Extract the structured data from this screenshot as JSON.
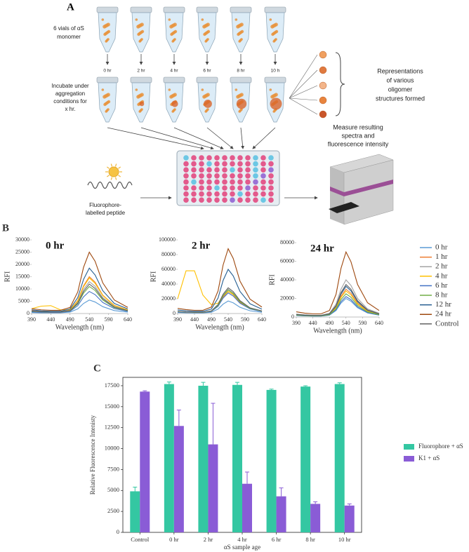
{
  "diagram": {
    "label": "A",
    "vials_text": [
      "6 vials of αS",
      "monomer"
    ],
    "times": [
      "0 hr",
      "2 hr",
      "4 hr",
      "6 hr",
      "8 hr",
      "10 h"
    ],
    "incubate_text": [
      "Incubate under",
      "aggregation",
      "conditions for",
      "x hr."
    ],
    "oligomer_text": [
      "Representations",
      "of various",
      "oligomer",
      "structures formed"
    ],
    "measure_text": [
      "Measure resulting",
      "spectra and",
      "fluorescence intensity"
    ],
    "peptide_text": [
      "Fluorophore-",
      "labelled peptide"
    ]
  },
  "chart_data": [
    {
      "type": "line",
      "panel_label": "B",
      "xlabel": "Wavelength (nm)",
      "ylabel": "RFI",
      "x": [
        390,
        415,
        440,
        465,
        490,
        510,
        525,
        540,
        555,
        575,
        605,
        640
      ],
      "xlim": [
        390,
        640
      ],
      "xticks": [
        390,
        440,
        490,
        540,
        590,
        640
      ],
      "series": [
        {
          "name": "0 hr",
          "color": "#5b9bd5"
        },
        {
          "name": "1 hr",
          "color": "#ed7d31"
        },
        {
          "name": "2 hr",
          "color": "#a5a5a5"
        },
        {
          "name": "4 hr",
          "color": "#ffc000"
        },
        {
          "name": "6 hr",
          "color": "#4472c4"
        },
        {
          "name": "8 hr",
          "color": "#70ad47"
        },
        {
          "name": "12 hr",
          "color": "#255e91"
        },
        {
          "name": "24 hr",
          "color": "#9e480e"
        },
        {
          "name": "Control",
          "color": "#636363"
        }
      ],
      "panels": [
        {
          "title": "0 hr",
          "ylim": [
            0,
            30000
          ],
          "yticks": [
            0,
            5000,
            10000,
            15000,
            20000,
            25000,
            30000
          ],
          "values": [
            [
              400,
              300,
              300,
              300,
              600,
              1900,
              4100,
              5500,
              4700,
              2800,
              1200,
              600
            ],
            [
              1200,
              900,
              750,
              750,
              1500,
              5300,
              11300,
              15000,
              12800,
              7500,
              3300,
              1500
            ],
            [
              1000,
              800,
              700,
              700,
              1300,
              4600,
              9800,
              13000,
              11100,
              6500,
              2900,
              1300
            ],
            [
              2000,
              3000,
              3200,
              1500,
              1500,
              5100,
              10900,
              14500,
              12300,
              7300,
              3200,
              1500
            ],
            [
              700,
              500,
              500,
              500,
              900,
              3200,
              6800,
              9000,
              7700,
              4500,
              2000,
              900
            ],
            [
              900,
              700,
              600,
              600,
              1100,
              3900,
              8300,
              11000,
              9400,
              5500,
              2400,
              1100
            ],
            [
              1500,
              1100,
              900,
              900,
              1900,
              6500,
              13900,
              18500,
              15700,
              9300,
              4100,
              1900
            ],
            [
              2000,
              1500,
              1300,
              1300,
              2500,
              8800,
              18800,
              25000,
              21300,
              12500,
              5500,
              2500
            ],
            [
              1000,
              700,
              600,
              600,
              1200,
              4200,
              9000,
              12000,
              10200,
              6000,
              2600,
              1200
            ]
          ]
        },
        {
          "title": "2 hr",
          "ylim": [
            0,
            100000
          ],
          "yticks": [
            0,
            20000,
            40000,
            60000,
            80000,
            100000
          ],
          "values": [
            [
              1400,
              1000,
              900,
              900,
              1700,
              6000,
              12800,
              17000,
              14500,
              8500,
              3700,
              1700
            ],
            [
              2400,
              1800,
              1500,
              1500,
              3000,
              10500,
              22500,
              30000,
              25500,
              15000,
              6600,
              3000
            ],
            [
              2600,
              2000,
              1700,
              1700,
              3300,
              11600,
              24800,
              33000,
              28100,
              16500,
              7300,
              3300
            ],
            [
              20000,
              58000,
              58000,
              25000,
              12000,
              14000,
              24000,
              30000,
              26000,
              16000,
              7000,
              3000
            ],
            [
              2200,
              1700,
              1400,
              1400,
              2800,
              9800,
              21000,
              28000,
              23800,
              14000,
              6200,
              2800
            ],
            [
              2600,
              1900,
              1600,
              1600,
              3200,
              11200,
              24000,
              32000,
              27200,
              16000,
              7000,
              3200
            ],
            [
              4800,
              3600,
              3000,
              3000,
              6000,
              21000,
              45000,
              60000,
              51000,
              30000,
              13200,
              6000
            ],
            [
              7000,
              5300,
              4400,
              4400,
              8800,
              30800,
              66000,
              88000,
              74800,
              44000,
              19400,
              8800
            ],
            [
              2800,
              2100,
              1800,
              1800,
              3500,
              12300,
              26300,
              35000,
              29800,
              17500,
              7700,
              3500
            ]
          ]
        },
        {
          "title": "24 hr",
          "ylim": [
            0,
            80000
          ],
          "yticks": [
            0,
            20000,
            40000,
            60000,
            80000
          ],
          "values": [
            [
              1600,
              1200,
              1000,
              1000,
              2000,
              7000,
              15000,
              20000,
              17000,
              10000,
              4400,
              2000
            ],
            [
              2400,
              1800,
              1500,
              1500,
              3000,
              10500,
              22500,
              30000,
              25500,
              15000,
              6600,
              3000
            ],
            [
              3200,
              2400,
              2000,
              2000,
              4000,
              14000,
              30000,
              40000,
              34000,
              20000,
              8800,
              4000
            ],
            [
              2200,
              1700,
              1400,
              1400,
              2800,
              9800,
              21000,
              28000,
              23800,
              14000,
              6200,
              2800
            ],
            [
              1800,
              1300,
              1100,
              1100,
              2200,
              7700,
              16500,
              22000,
              18700,
              11000,
              4800,
              2200
            ],
            [
              2000,
              1500,
              1300,
              1300,
              2500,
              8800,
              18800,
              25000,
              21300,
              12500,
              5500,
              2500
            ],
            [
              2600,
              2000,
              1700,
              1700,
              3300,
              11600,
              24800,
              33000,
              28100,
              16500,
              7300,
              3300
            ],
            [
              5600,
              4200,
              3500,
              3500,
              7000,
              24500,
              52500,
              70000,
              59500,
              35000,
              15400,
              7000
            ],
            [
              2800,
              2100,
              1800,
              1800,
              3500,
              12300,
              26300,
              35000,
              29800,
              17500,
              7700,
              3500
            ]
          ]
        }
      ]
    },
    {
      "type": "bar",
      "panel_label": "C",
      "xlabel": "αS sample age",
      "ylabel": "Relative Fluorescence Intenisty",
      "categories": [
        "Control",
        "0 hr",
        "2 hr",
        "4 hr",
        "6 hr",
        "8 hr",
        "10 hr"
      ],
      "ylim": [
        0,
        18500
      ],
      "yticks": [
        0,
        2500,
        5000,
        7500,
        10000,
        12500,
        15000,
        17500
      ],
      "series": [
        {
          "name": "Fluorophore + αS",
          "color": "#34c7a2",
          "values": [
            4900,
            17700,
            17500,
            17600,
            17000,
            17400,
            17700
          ],
          "errors": [
            500,
            250,
            400,
            300,
            100,
            100,
            150
          ]
        },
        {
          "name": "K1 + αS",
          "color": "#8a5cd6",
          "values": [
            16800,
            12700,
            10500,
            5800,
            4300,
            3400,
            3200
          ],
          "errors": [
            100,
            1900,
            4900,
            1400,
            1000,
            250,
            200
          ]
        }
      ]
    }
  ]
}
